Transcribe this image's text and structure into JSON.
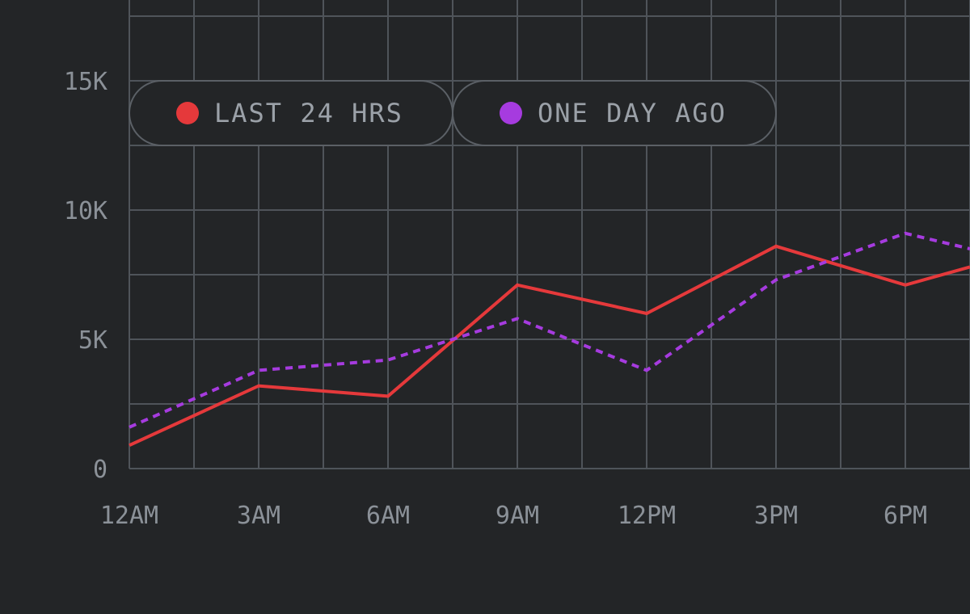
{
  "chart_data": {
    "type": "line",
    "title": "",
    "xlabel": "",
    "ylabel": "",
    "x_tick_labels": [
      "12AM",
      "3AM",
      "6AM",
      "9AM",
      "12PM",
      "3PM",
      "6PM"
    ],
    "x_hours": [
      0,
      1.5,
      3,
      4.5,
      6,
      7.5,
      9,
      10.5,
      12,
      13.5,
      15,
      16.5,
      18,
      19.5
    ],
    "x_range_hours": [
      0,
      19.5
    ],
    "y_tick_labels": [
      "0",
      "5K",
      "10K",
      "15K"
    ],
    "y_tick_values": [
      0,
      5000,
      10000,
      15000
    ],
    "ylim": [
      0,
      17500
    ],
    "y_grid_step": 2500,
    "grid": true,
    "legend_position": "top-left",
    "series": [
      {
        "name": "LAST 24 HRS",
        "color": "#e5393b",
        "style": "solid",
        "x_hours": [
          0,
          3,
          6,
          9,
          12,
          15,
          18,
          19.5
        ],
        "values": [
          900,
          3200,
          2800,
          7100,
          6000,
          8600,
          7100,
          7800
        ]
      },
      {
        "name": "ONE DAY AGO",
        "color": "#a63bdf",
        "style": "dotted",
        "x_hours": [
          0,
          3,
          6,
          9,
          12,
          15,
          18,
          19.5
        ],
        "values": [
          1600,
          3800,
          4200,
          5800,
          3800,
          7300,
          9100,
          8500
        ]
      }
    ]
  },
  "colors": {
    "background": "#232527",
    "grid": "#4f545a",
    "text": "#8b9198"
  }
}
